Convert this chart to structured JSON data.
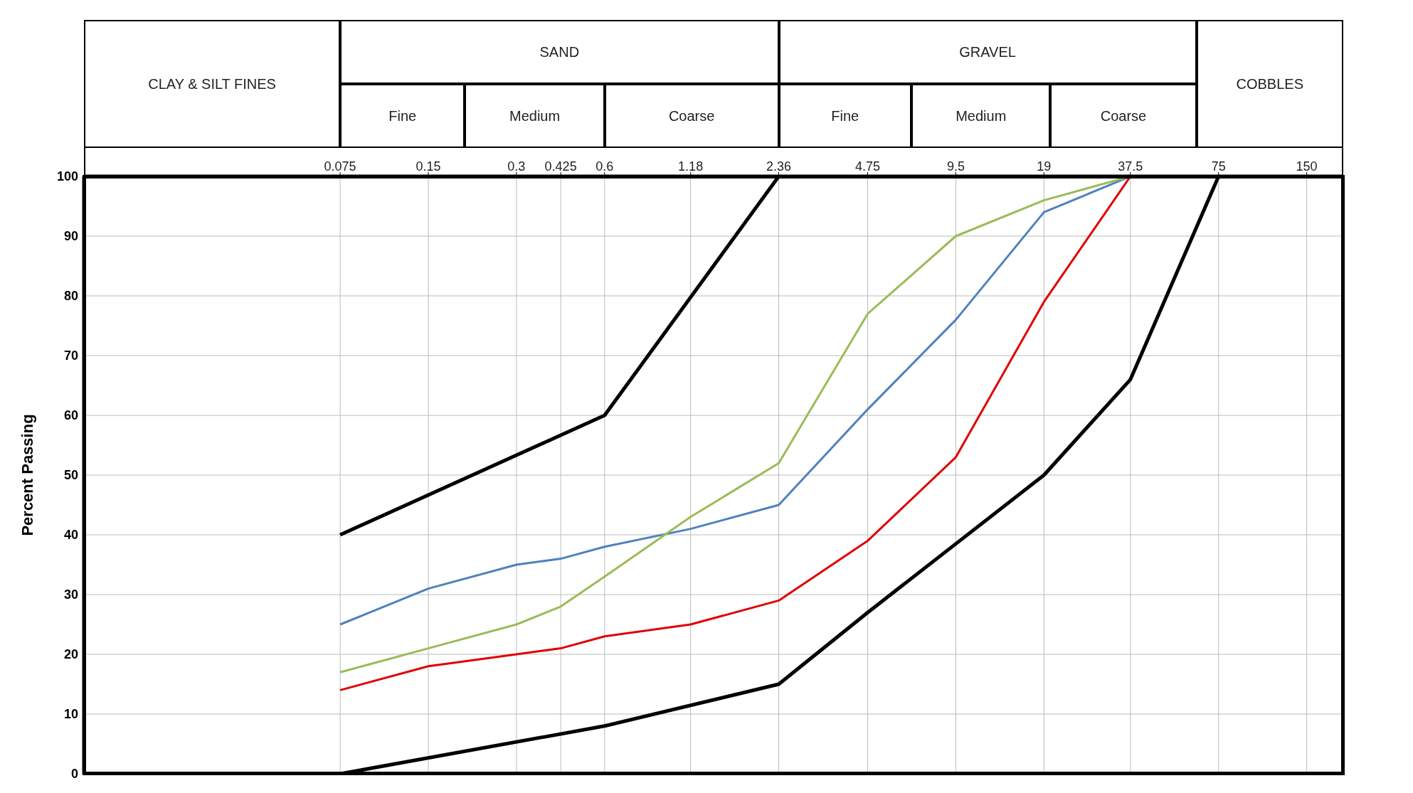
{
  "chart_data": {
    "type": "line",
    "ylabel": "Percent Passing",
    "xlim": [
      0.01,
      200
    ],
    "xticks": [
      0.075,
      0.15,
      0.3,
      0.425,
      0.6,
      1.18,
      2.36,
      4.75,
      9.5,
      19,
      37.5,
      75,
      150
    ],
    "ylim": [
      0,
      100
    ],
    "yticks": [
      0,
      10,
      20,
      30,
      40,
      50,
      60,
      70,
      80,
      90,
      100
    ],
    "log": "x",
    "grid": true,
    "marker": "none",
    "line_style": "solid",
    "annotations": [
      "CLAY & SILT FINES",
      "SAND",
      "Fine",
      "Medium",
      "Coarse",
      "GRAVEL",
      "Fine",
      "Medium",
      "Coarse",
      "COBBLES"
    ],
    "series": [
      {
        "color": "#000000",
        "x": [
          0.075,
          0.6,
          2.36
        ],
        "values": [
          40,
          60,
          100
        ]
      },
      {
        "color": "#000000",
        "x": [
          0.075,
          0.6,
          2.36,
          4.75,
          9.5,
          19,
          37.5,
          75
        ],
        "values": [
          0,
          8,
          15,
          27,
          38.5,
          50,
          66,
          100
        ]
      },
      {
        "color": "#4f81bd",
        "x": [
          0.075,
          0.15,
          0.3,
          0.425,
          0.6,
          1.18,
          2.36,
          4.75,
          9.5,
          19,
          37.5
        ],
        "values": [
          25,
          31,
          35,
          36,
          38,
          41,
          45,
          61,
          76,
          94,
          100
        ]
      },
      {
        "color": "#9bbb59",
        "x": [
          0.075,
          0.15,
          0.3,
          0.425,
          0.6,
          1.18,
          2.36,
          4.75,
          9.5,
          19,
          37.5
        ],
        "values": [
          17,
          21,
          25,
          28,
          33,
          43,
          52,
          77,
          90,
          96,
          100
        ]
      },
      {
        "color": "#e00000",
        "x": [
          0.075,
          0.15,
          0.3,
          0.425,
          0.6,
          1.18,
          2.36,
          4.75,
          9.5,
          19,
          37.5
        ],
        "values": [
          14,
          18,
          20,
          21,
          23,
          25,
          29,
          39,
          53,
          79,
          100
        ]
      }
    ]
  }
}
